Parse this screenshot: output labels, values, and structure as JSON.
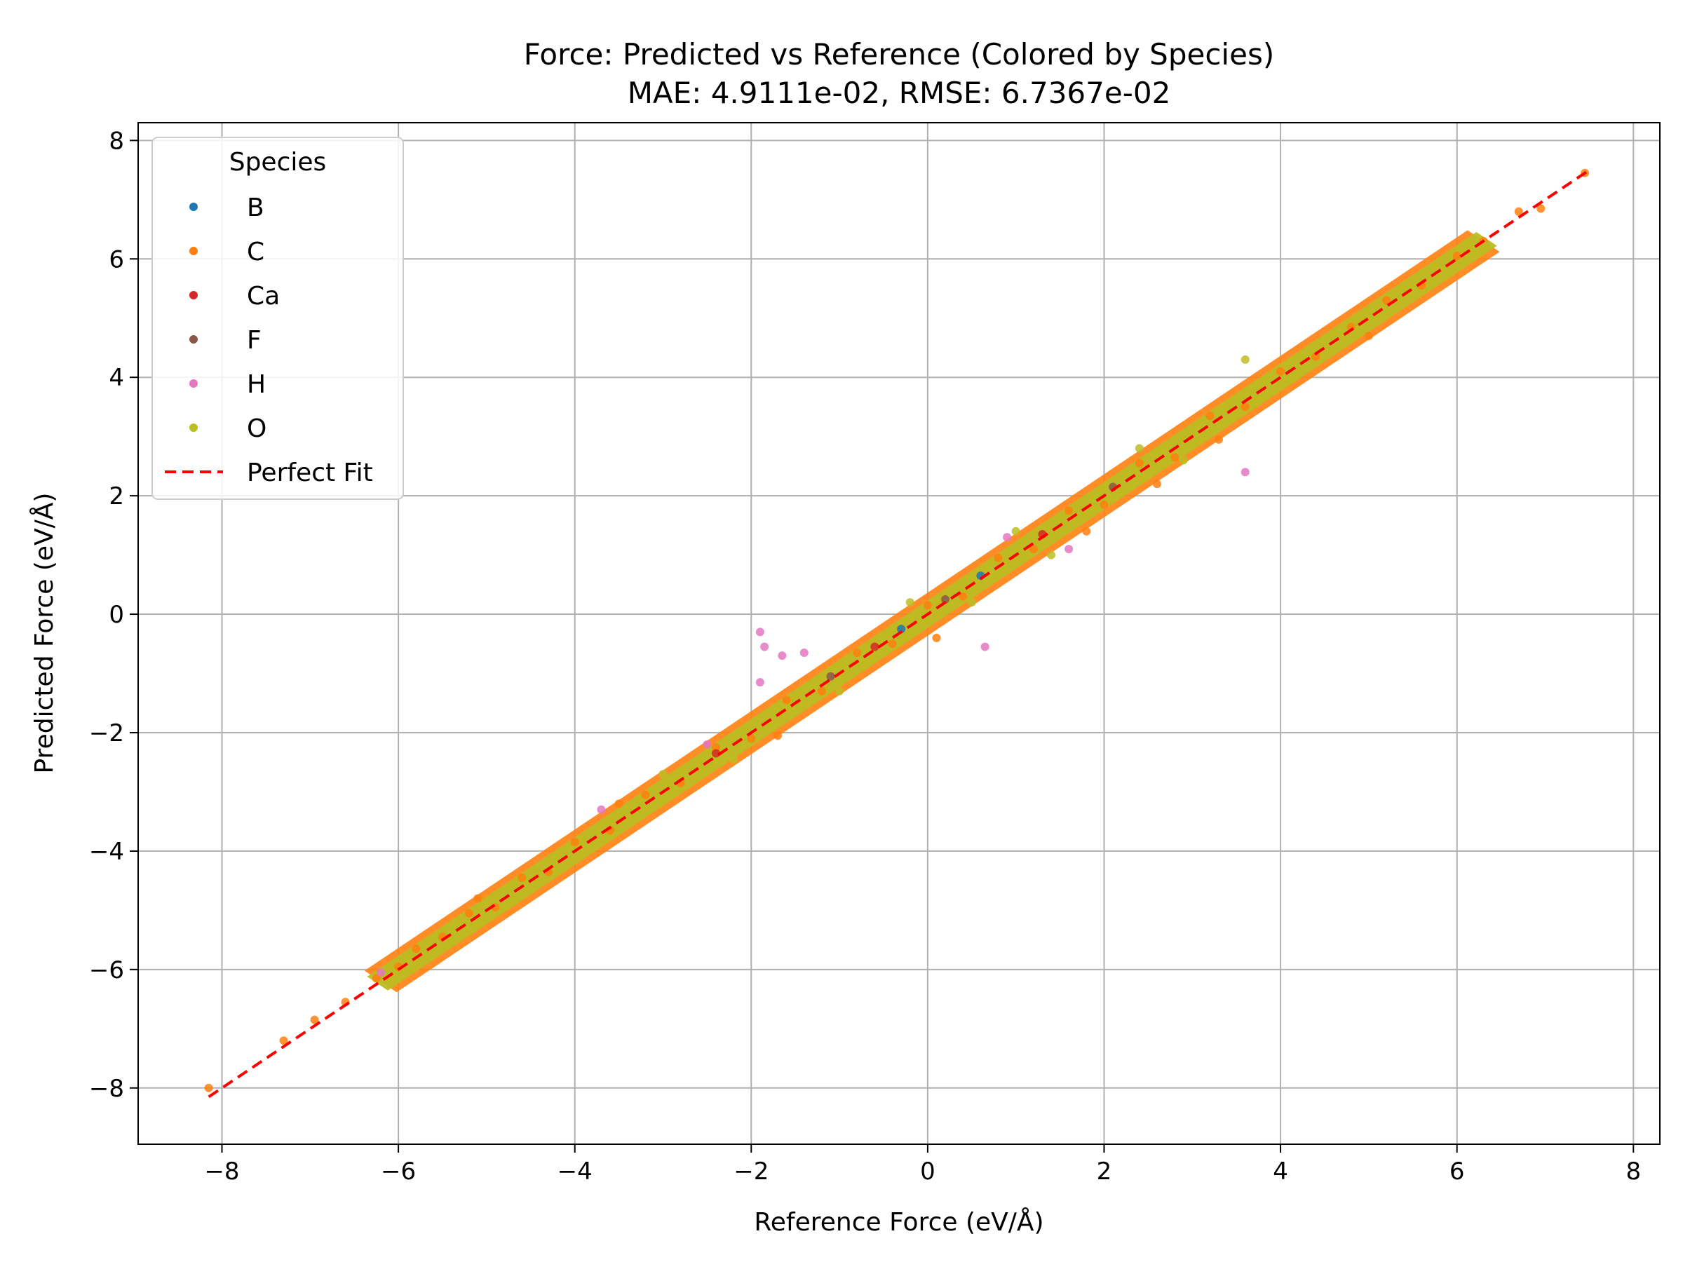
{
  "chart_data": {
    "type": "scatter",
    "title": "Force: Predicted vs Reference (Colored by Species)",
    "subtitle": "MAE: 4.9111e-02, RMSE: 6.7367e-02",
    "xlabel": "Reference Force (eV/Å)",
    "ylabel": "Predicted Force (eV/Å)",
    "xlim": [
      -8.95,
      8.3
    ],
    "ylim": [
      -8.95,
      8.3
    ],
    "xticks": [
      -8,
      -6,
      -4,
      -2,
      0,
      2,
      4,
      6,
      8
    ],
    "yticks": [
      -8,
      -6,
      -4,
      -2,
      0,
      2,
      4,
      6,
      8
    ],
    "xtick_labels": [
      "−8",
      "−6",
      "−4",
      "−2",
      "0",
      "2",
      "4",
      "6",
      "8"
    ],
    "ytick_labels": [
      "−8",
      "−6",
      "−4",
      "−2",
      "0",
      "2",
      "4",
      "6",
      "8"
    ],
    "grid": true,
    "legend": {
      "title": "Species",
      "position": "top-left",
      "entries": [
        {
          "label": "B",
          "color": "#1f77b4",
          "marker": "dot"
        },
        {
          "label": "C",
          "color": "#ff7f0e",
          "marker": "dot"
        },
        {
          "label": "Ca",
          "color": "#d62728",
          "marker": "dot"
        },
        {
          "label": "F",
          "color": "#8c564b",
          "marker": "dot"
        },
        {
          "label": "H",
          "color": "#e377c2",
          "marker": "dot"
        },
        {
          "label": "O",
          "color": "#bcbd22",
          "marker": "dot"
        },
        {
          "label": "Perfect Fit",
          "color": "#ff0000",
          "marker": "dashed-line"
        }
      ]
    },
    "series": [
      {
        "name": "C",
        "color": "#ff7f0e",
        "points": [
          [
            -8.15,
            -8.0
          ],
          [
            -7.3,
            -7.2
          ],
          [
            -6.95,
            -6.85
          ],
          [
            -6.6,
            -6.55
          ],
          [
            -6.25,
            -6.15
          ],
          [
            -6.0,
            -5.95
          ],
          [
            -5.8,
            -5.65
          ],
          [
            -5.5,
            -5.45
          ],
          [
            -5.2,
            -5.05
          ],
          [
            -4.9,
            -4.95
          ],
          [
            -4.6,
            -4.45
          ],
          [
            -4.3,
            -4.35
          ],
          [
            -4.0,
            -3.85
          ],
          [
            -3.6,
            -3.65
          ],
          [
            -3.2,
            -3.05
          ],
          [
            -2.8,
            -2.85
          ],
          [
            -2.4,
            -2.25
          ],
          [
            -2.0,
            -2.1
          ],
          [
            -1.6,
            -1.45
          ],
          [
            -1.2,
            -1.3
          ],
          [
            -0.8,
            -0.65
          ],
          [
            -0.4,
            -0.5
          ],
          [
            0.0,
            0.15
          ],
          [
            0.4,
            0.3
          ],
          [
            0.8,
            0.95
          ],
          [
            1.2,
            1.1
          ],
          [
            1.6,
            1.75
          ],
          [
            2.0,
            1.85
          ],
          [
            2.4,
            2.55
          ],
          [
            2.8,
            2.65
          ],
          [
            3.2,
            3.35
          ],
          [
            3.6,
            3.5
          ],
          [
            4.0,
            4.1
          ],
          [
            4.4,
            4.35
          ],
          [
            4.8,
            4.85
          ],
          [
            5.2,
            5.3
          ],
          [
            5.6,
            5.55
          ],
          [
            6.0,
            6.05
          ],
          [
            6.3,
            6.3
          ],
          [
            6.7,
            6.8
          ],
          [
            6.95,
            6.85
          ],
          [
            7.45,
            7.45
          ],
          [
            -1.7,
            -2.05
          ],
          [
            1.8,
            1.4
          ],
          [
            3.3,
            2.95
          ],
          [
            -3.5,
            -3.2
          ],
          [
            0.1,
            -0.4
          ],
          [
            5.0,
            4.7
          ],
          [
            -5.1,
            -4.8
          ],
          [
            2.6,
            2.2
          ]
        ]
      },
      {
        "name": "O",
        "color": "#bcbd22",
        "points": [
          [
            -6.1,
            -6.1
          ],
          [
            -5.4,
            -5.35
          ],
          [
            -4.8,
            -4.75
          ],
          [
            -4.2,
            -4.15
          ],
          [
            -3.7,
            -3.6
          ],
          [
            -3.3,
            -3.25
          ],
          [
            -2.9,
            -2.8
          ],
          [
            -2.5,
            -2.45
          ],
          [
            -2.1,
            -2.05
          ],
          [
            -1.7,
            -1.65
          ],
          [
            -1.3,
            -1.25
          ],
          [
            -0.9,
            -0.85
          ],
          [
            -0.5,
            -0.45
          ],
          [
            -0.1,
            -0.05
          ],
          [
            0.3,
            0.35
          ],
          [
            0.7,
            0.75
          ],
          [
            1.1,
            1.15
          ],
          [
            1.5,
            1.55
          ],
          [
            1.9,
            1.95
          ],
          [
            2.3,
            2.35
          ],
          [
            2.7,
            2.75
          ],
          [
            3.1,
            3.15
          ],
          [
            3.5,
            3.55
          ],
          [
            3.9,
            3.95
          ],
          [
            4.3,
            4.35
          ],
          [
            4.7,
            4.75
          ],
          [
            5.1,
            5.1
          ],
          [
            5.5,
            5.55
          ],
          [
            6.2,
            6.2
          ],
          [
            6.3,
            6.25
          ],
          [
            -2.2,
            -2.45
          ],
          [
            -1.0,
            -1.3
          ],
          [
            0.5,
            0.2
          ],
          [
            1.4,
            1.0
          ],
          [
            2.9,
            2.6
          ],
          [
            3.6,
            4.3
          ],
          [
            -3.0,
            -2.7
          ],
          [
            -0.2,
            0.2
          ],
          [
            1.0,
            1.4
          ],
          [
            2.4,
            2.8
          ]
        ]
      },
      {
        "name": "H",
        "color": "#e377c2",
        "points": [
          [
            -1.9,
            -0.3
          ],
          [
            -1.4,
            -0.65
          ],
          [
            -1.65,
            -0.7
          ],
          [
            -1.85,
            -0.55
          ],
          [
            -1.9,
            -1.15
          ],
          [
            0.65,
            -0.55
          ],
          [
            3.6,
            2.4
          ],
          [
            -6.2,
            -6.05
          ],
          [
            -3.7,
            -3.3
          ],
          [
            1.6,
            1.1
          ],
          [
            0.9,
            1.3
          ],
          [
            -2.5,
            -2.2
          ]
        ]
      },
      {
        "name": "Ca",
        "color": "#d62728",
        "points": [
          [
            -0.6,
            -0.55
          ],
          [
            1.3,
            1.35
          ],
          [
            -2.4,
            -2.35
          ]
        ]
      },
      {
        "name": "F",
        "color": "#8c564b",
        "points": [
          [
            0.2,
            0.25
          ],
          [
            -1.1,
            -1.05
          ],
          [
            2.1,
            2.15
          ]
        ]
      },
      {
        "name": "B",
        "color": "#1f77b4",
        "points": [
          [
            0.6,
            0.65
          ],
          [
            -0.3,
            -0.25
          ]
        ]
      }
    ],
    "reference_line": {
      "name": "Perfect Fit",
      "color": "#ff0000",
      "x": [
        -8.15,
        7.5
      ],
      "y": [
        -8.15,
        7.5
      ]
    }
  }
}
